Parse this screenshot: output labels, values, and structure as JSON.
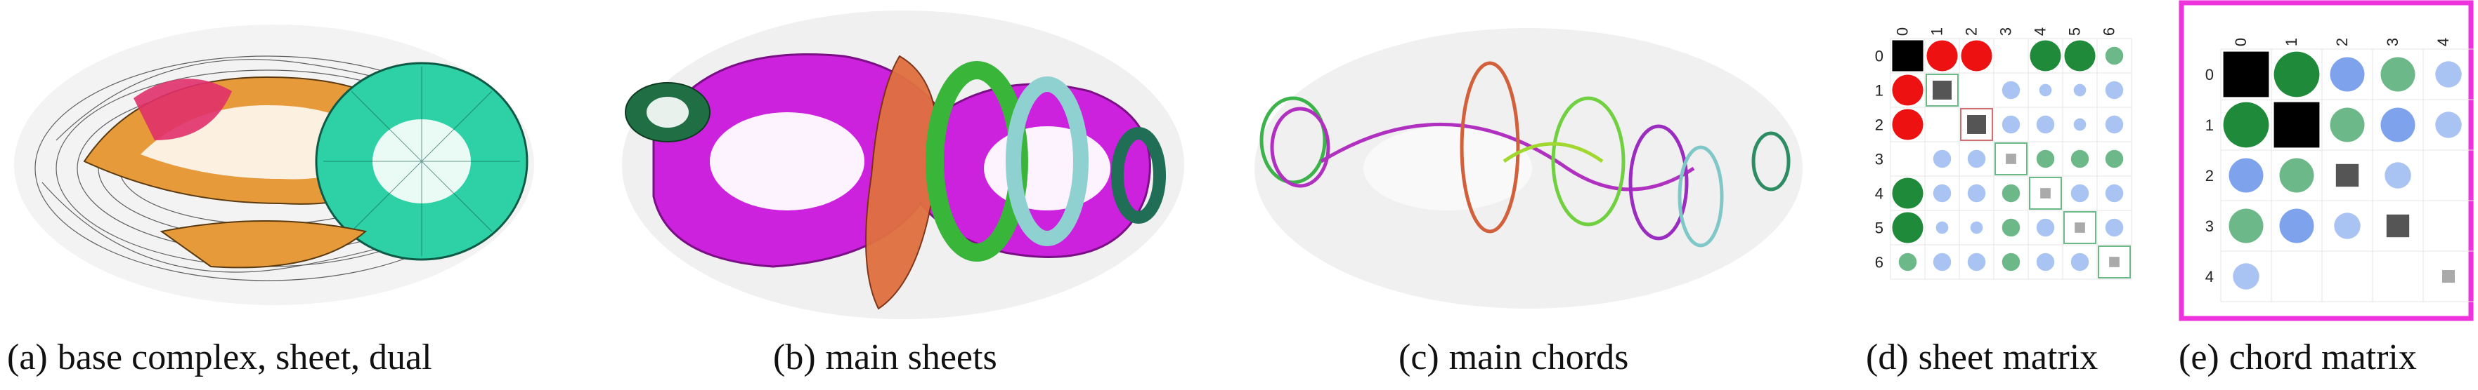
{
  "captions": {
    "a": {
      "tag": "(a)",
      "text": "base complex, sheet, dual"
    },
    "b": {
      "tag": "(b)",
      "text": "main sheets"
    },
    "c": {
      "tag": "(c)",
      "text": "main chords"
    },
    "d": {
      "tag": "(d)",
      "text": "sheet matrix"
    },
    "e": {
      "tag": "(e)",
      "text": "chord matrix"
    }
  },
  "sheet_matrix": {
    "labels": [
      "0",
      "1",
      "2",
      "3",
      "4",
      "5",
      "6"
    ],
    "cells": [
      [
        "black-square",
        "red-big",
        "red-big",
        "",
        "green-big",
        "green-big",
        "green-small"
      ],
      [
        "red-big",
        "gray-square",
        "",
        "blue-small",
        "blue-tiny",
        "blue-tiny",
        "blue-small"
      ],
      [
        "red-big",
        "",
        "gray-square",
        "blue-small",
        "blue-small",
        "blue-tiny",
        "blue-small"
      ],
      [
        "",
        "blue-small",
        "blue-small",
        "gray-square-small",
        "green-small",
        "green-small",
        "green-small"
      ],
      [
        "green-big",
        "blue-small",
        "blue-small",
        "green-small",
        "gray-square-small",
        "blue-small",
        "blue-small"
      ],
      [
        "green-big",
        "blue-tiny",
        "blue-tiny",
        "green-small",
        "blue-small",
        "gray-square-small",
        "blue-small"
      ],
      [
        "green-small",
        "blue-small",
        "blue-small",
        "green-small",
        "blue-small",
        "blue-small",
        "gray-square-small"
      ]
    ],
    "colors": {
      "red": "#ee1111",
      "green": "#1f8a3a",
      "green_light": "#6cb889",
      "blue": "#a9c4f2",
      "blue_dark": "#7ea3ec",
      "black": "#000000",
      "gray": "#555555"
    }
  },
  "chord_matrix": {
    "labels": [
      "0",
      "1",
      "2",
      "3",
      "4"
    ],
    "cells": [
      [
        "black-square",
        "green-big",
        "blue-mid",
        "green-mid",
        "blue-small"
      ],
      [
        "green-big",
        "black-square",
        "green-mid",
        "blue-mid",
        "blue-small"
      ],
      [
        "blue-mid",
        "green-mid",
        "gray-square-mid",
        "blue-small",
        ""
      ],
      [
        "green-mid",
        "blue-mid",
        "blue-small",
        "gray-square-mid",
        ""
      ],
      [
        "blue-small",
        "",
        "",
        "",
        "gray-square-tiny"
      ]
    ],
    "frame_color": "#ee33dd"
  }
}
